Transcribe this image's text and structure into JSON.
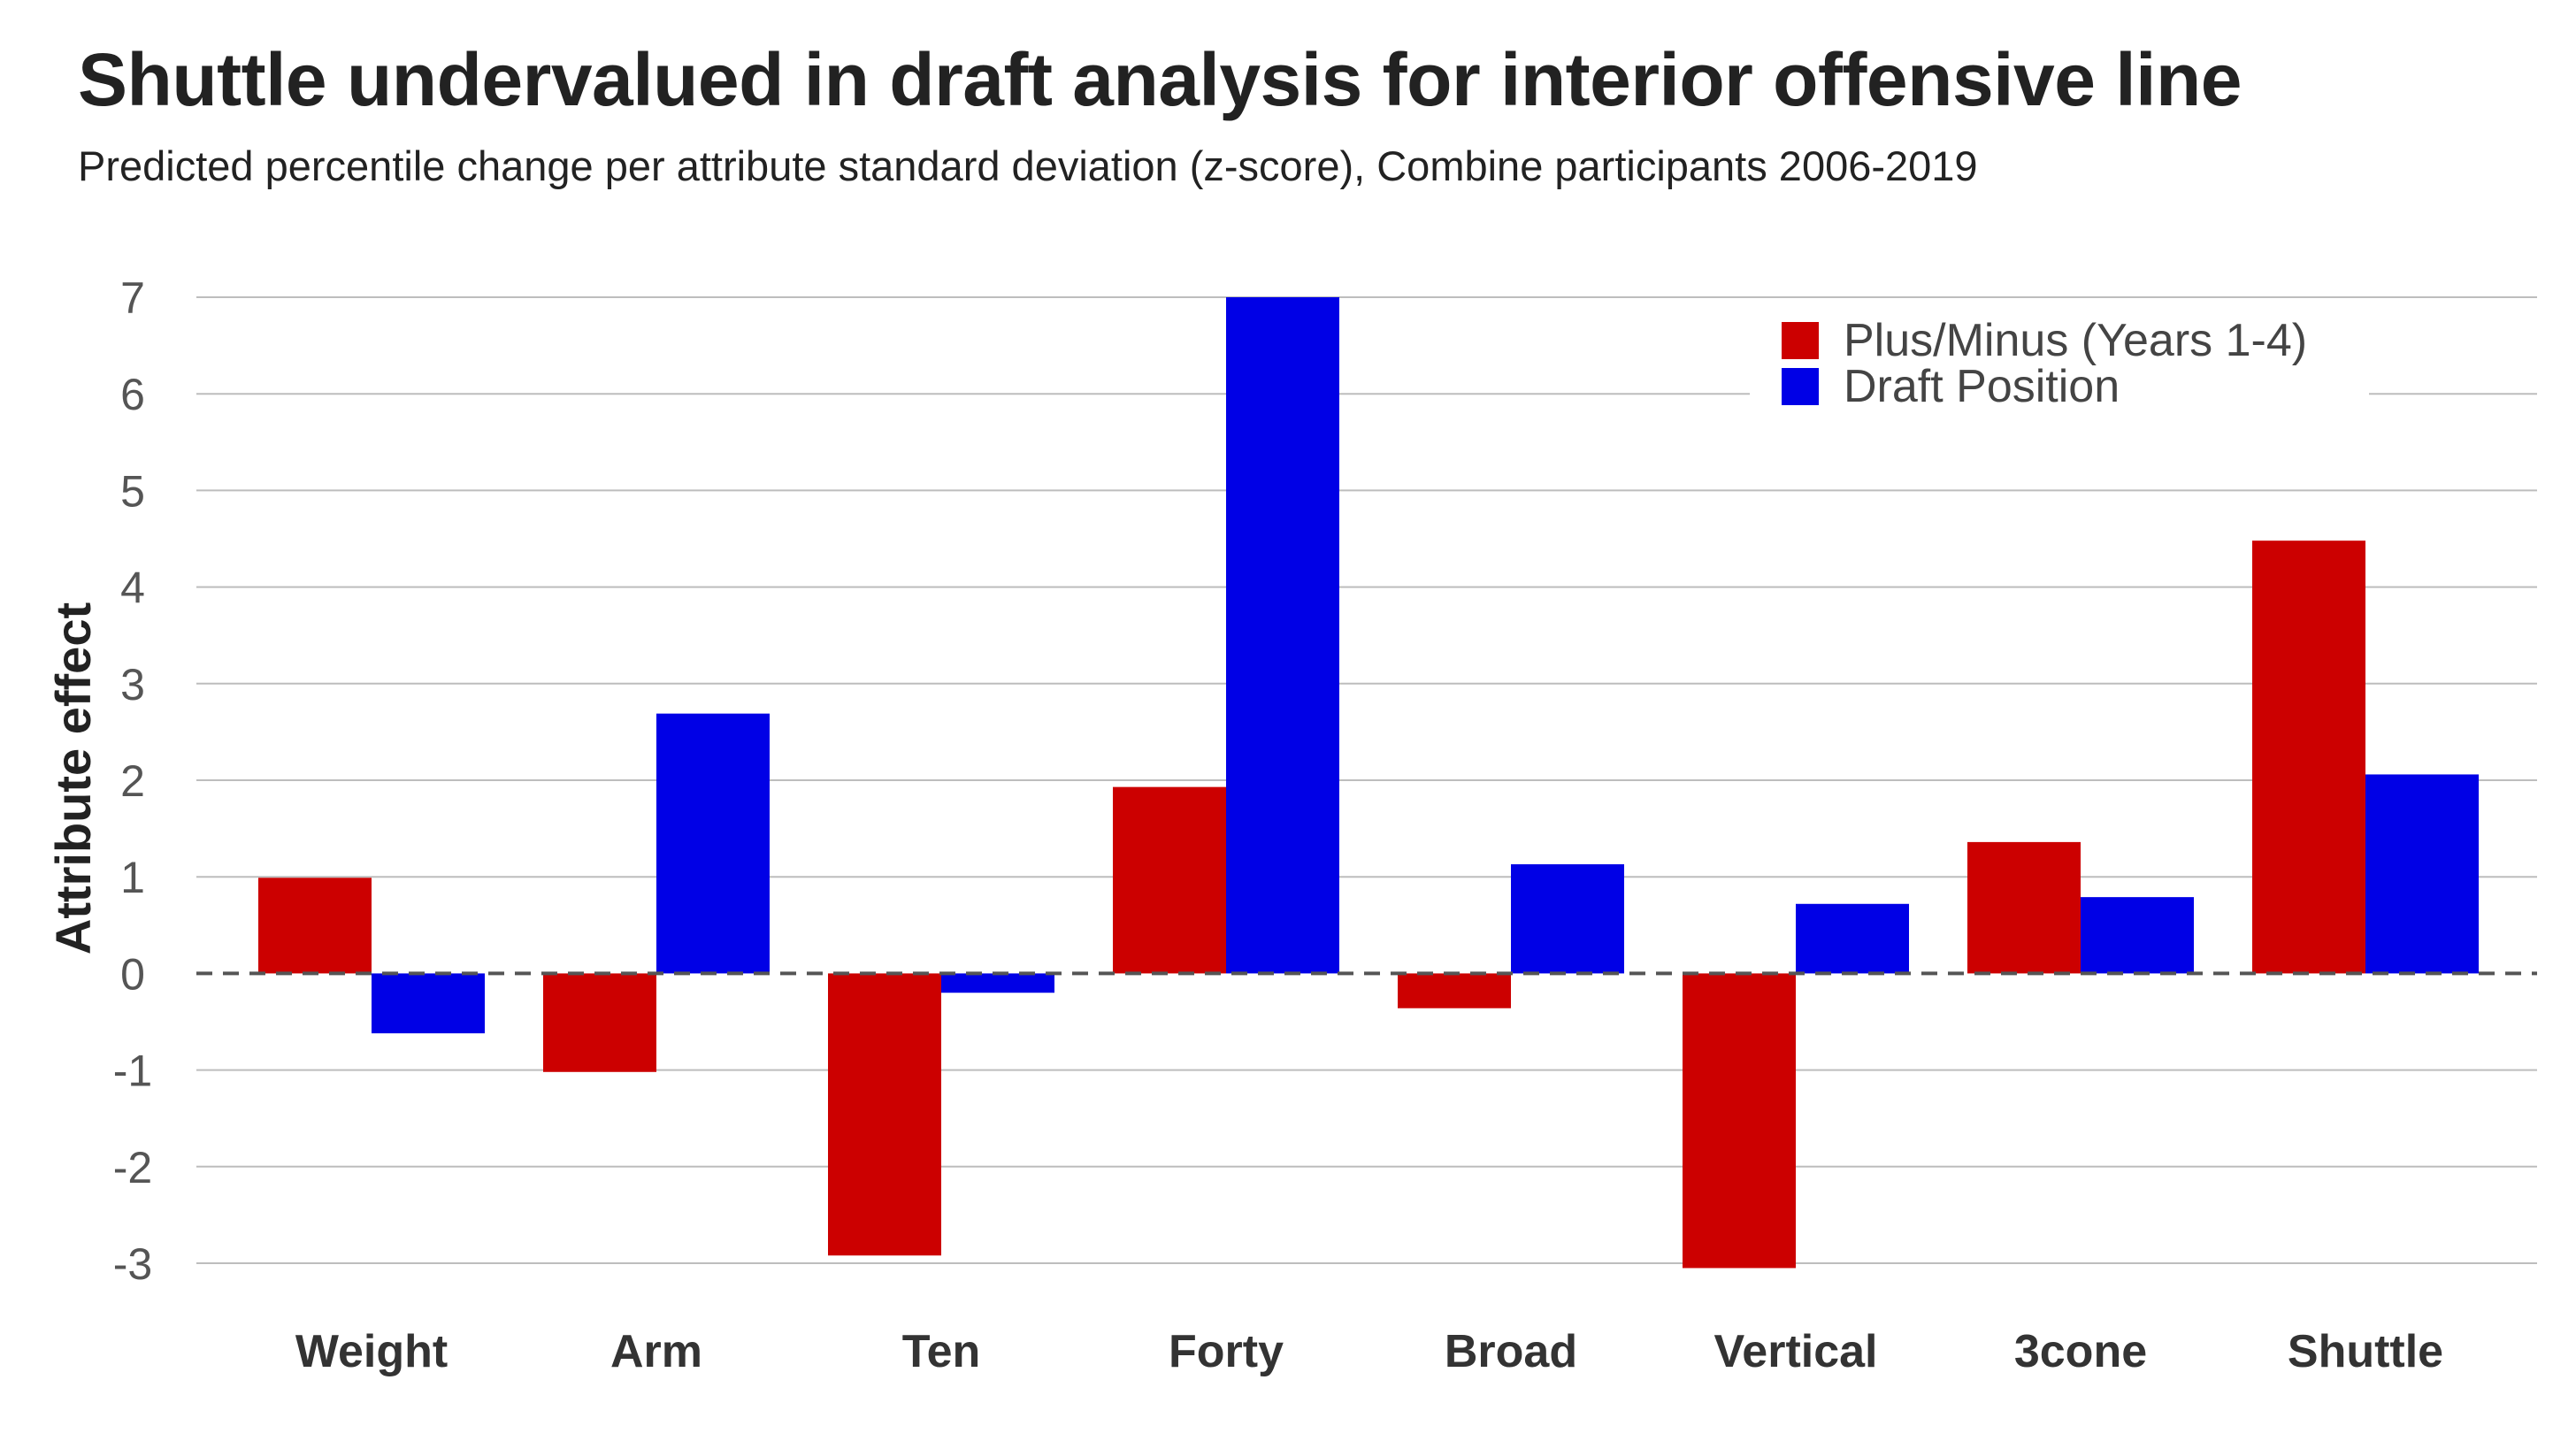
{
  "chart_data": {
    "type": "bar",
    "title": "Shuttle undervalued in draft analysis for interior offensive line",
    "subtitle": "Predicted percentile change per attribute standard deviation (z-score), Combine participants 2006-2019",
    "ylabel": "Attribute effect",
    "xlabel": "",
    "categories": [
      "Weight",
      "Arm",
      "Ten",
      "Forty",
      "Broad",
      "Vertical",
      "3cone",
      "Shuttle"
    ],
    "series": [
      {
        "name": "Plus/Minus (Years 1-4)",
        "color": "#cc0000",
        "values": [
          0.99,
          -1.02,
          -2.92,
          1.93,
          -0.36,
          -3.05,
          1.36,
          4.48
        ]
      },
      {
        "name": "Draft Position",
        "color": "#0000e6",
        "values": [
          -0.62,
          2.69,
          -0.2,
          7.0,
          1.13,
          0.72,
          0.79,
          2.06
        ]
      }
    ],
    "ylim": [
      -3,
      7
    ],
    "yticks": [
      -3,
      -2,
      -1,
      0,
      1,
      2,
      3,
      4,
      5,
      6,
      7
    ],
    "grid": true,
    "zero_line": "dashed",
    "legend_position": "top-right"
  }
}
